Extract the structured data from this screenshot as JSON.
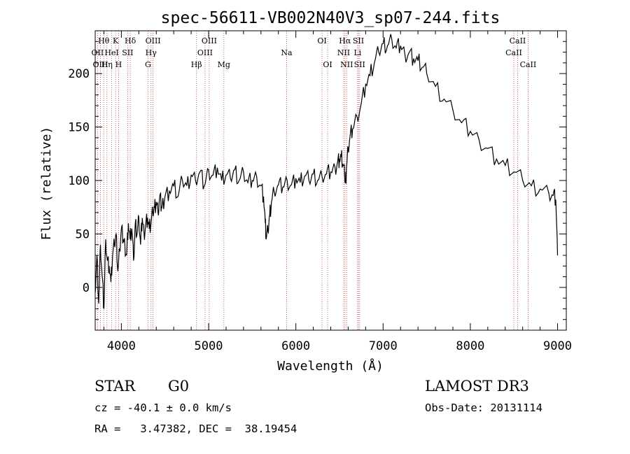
{
  "chart_data": {
    "type": "line",
    "title": "spec-56611-VB002N40V3_sp07-244.fits",
    "xlabel": "Wavelength (Å)",
    "ylabel": "Flux (relative)",
    "xlim": [
      3700,
      9100
    ],
    "ylim": [
      -40,
      240
    ],
    "xticks": [
      4000,
      5000,
      6000,
      7000,
      8000,
      9000
    ],
    "yticks": [
      0,
      50,
      100,
      150,
      200
    ],
    "series": [
      {
        "name": "spectrum",
        "x": [
          3700,
          3720,
          3740,
          3760,
          3780,
          3800,
          3820,
          3840,
          3860,
          3880,
          3900,
          3920,
          3940,
          3960,
          3980,
          4000,
          4020,
          4040,
          4060,
          4080,
          4100,
          4120,
          4140,
          4160,
          4180,
          4200,
          4220,
          4240,
          4260,
          4280,
          4300,
          4320,
          4340,
          4360,
          4380,
          4400,
          4420,
          4440,
          4460,
          4480,
          4500,
          4550,
          4600,
          4650,
          4700,
          4750,
          4800,
          4850,
          4900,
          4950,
          5000,
          5050,
          5100,
          5150,
          5200,
          5250,
          5300,
          5350,
          5400,
          5450,
          5500,
          5550,
          5600,
          5630,
          5650,
          5660,
          5680,
          5700,
          5720,
          5750,
          5800,
          5850,
          5900,
          5950,
          6000,
          6050,
          6100,
          6150,
          6200,
          6250,
          6300,
          6350,
          6400,
          6450,
          6480,
          6500,
          6520,
          6540,
          6560,
          6570,
          6580,
          6600,
          6620,
          6650,
          6700,
          6750,
          6800,
          6850,
          6900,
          6950,
          7000,
          7050,
          7100,
          7150,
          7200,
          7250,
          7300,
          7350,
          7400,
          7450,
          7500,
          7600,
          7700,
          7800,
          7900,
          8000,
          8100,
          8200,
          8300,
          8400,
          8500,
          8600,
          8700,
          8800,
          8900,
          8950,
          8980,
          9000
        ],
        "y": [
          -5,
          30,
          -15,
          40,
          10,
          -20,
          45,
          25,
          20,
          5,
          30,
          40,
          50,
          15,
          35,
          55,
          45,
          40,
          30,
          60,
          45,
          55,
          25,
          60,
          50,
          65,
          40,
          65,
          50,
          60,
          65,
          55,
          60,
          70,
          75,
          80,
          70,
          85,
          75,
          80,
          85,
          90,
          95,
          85,
          100,
          95,
          105,
          100,
          108,
          95,
          110,
          105,
          112,
          100,
          105,
          102,
          110,
          100,
          108,
          98,
          100,
          104,
          95,
          85,
          60,
          45,
          52,
          68,
          80,
          90,
          96,
          94,
          100,
          96,
          102,
          98,
          104,
          100,
          106,
          100,
          104,
          106,
          108,
          112,
          118,
          120,
          122,
          115,
          104,
          98,
          112,
          130,
          140,
          148,
          160,
          172,
          190,
          198,
          210,
          220,
          228,
          226,
          232,
          224,
          226,
          218,
          220,
          214,
          212,
          206,
          200,
          188,
          176,
          166,
          154,
          146,
          138,
          130,
          120,
          114,
          108,
          100,
          95,
          92,
          88,
          86,
          82,
          30
        ]
      }
    ],
    "lines": [
      {
        "name": "Hθ",
        "x": 3798,
        "label_row": 1
      },
      {
        "name": "OII",
        "x": 3727,
        "label_row": 2
      },
      {
        "name": "OIII",
        "x": 3760,
        "label_row": 3
      },
      {
        "name": "K",
        "x": 3934,
        "label_row": 1
      },
      {
        "name": "HeI",
        "x": 3889,
        "label_row": 2
      },
      {
        "name": "Hη",
        "x": 3835,
        "label_row": 3
      },
      {
        "name": "SII",
        "x": 4072,
        "label_row": 2
      },
      {
        "name": "H",
        "x": 3968,
        "label_row": 3
      },
      {
        "name": "Hδ",
        "x": 4102,
        "label_row": 1
      },
      {
        "name": "OIII",
        "x": 4363,
        "label_row": 1
      },
      {
        "name": "Hγ",
        "x": 4340,
        "label_row": 2
      },
      {
        "name": "G",
        "x": 4305,
        "label_row": 3
      },
      {
        "name": "Hβ",
        "x": 4861,
        "label_row": 3
      },
      {
        "name": "OIII",
        "x": 4959,
        "label_row": 2
      },
      {
        "name": "OIII",
        "x": 5007,
        "label_row": 1
      },
      {
        "name": "Mg",
        "x": 5175,
        "label_row": 3
      },
      {
        "name": "Na",
        "x": 5894,
        "label_row": 2
      },
      {
        "name": "OI",
        "x": 6300,
        "label_row": 1
      },
      {
        "name": "OI",
        "x": 6364,
        "label_row": 3
      },
      {
        "name": "Hα",
        "x": 6563,
        "label_row": 1
      },
      {
        "name": "NII",
        "x": 6548,
        "label_row": 2
      },
      {
        "name": "NII",
        "x": 6583,
        "label_row": 3
      },
      {
        "name": "SII",
        "x": 6717,
        "label_row": 1
      },
      {
        "name": "Li",
        "x": 6708,
        "label_row": 2
      },
      {
        "name": "SII",
        "x": 6731,
        "label_row": 3
      },
      {
        "name": "CaII",
        "x": 8542,
        "label_row": 1
      },
      {
        "name": "CaII",
        "x": 8498,
        "label_row": 2
      },
      {
        "name": "CaII",
        "x": 8662,
        "label_row": 3
      }
    ]
  },
  "info": {
    "object_class": "STAR",
    "subclass": "G0",
    "survey": "LAMOST DR3",
    "cz": "cz = -40.1 ± 0.0 km/s",
    "obs_date": "Obs-Date: 20131114",
    "radec": "RA =   3.47382, DEC =  38.19454"
  },
  "colors": {
    "line_marker": "#c04040",
    "spectrum": "#000000",
    "axis": "#000000"
  }
}
